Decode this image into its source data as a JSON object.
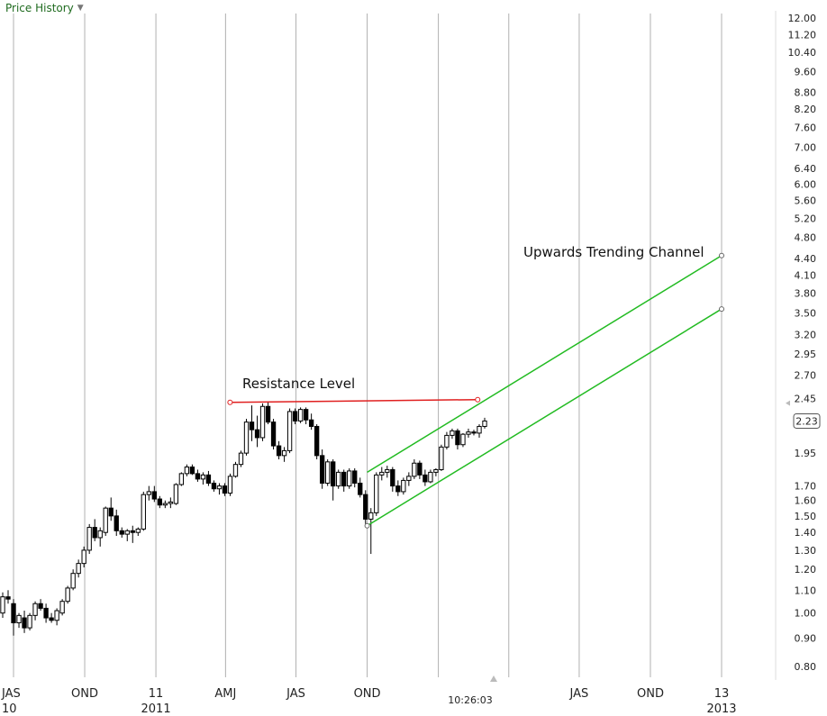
{
  "header": {
    "label": "Price History",
    "dropdown_icon": "chevron-down-icon"
  },
  "timestamp": "10:26:03",
  "current_price_label": "2.23",
  "colors": {
    "grid": "#b0b0b0",
    "candle": "#000000",
    "resistance": "#e02020",
    "channel": "#22bb22",
    "marker_arrow": "#bbbbbb"
  },
  "annotations": {
    "resistance_label": "Resistance Level",
    "channel_label": "Upwards Trending Channel"
  },
  "chart_data": {
    "type": "candlestick",
    "y_scale": "log",
    "ylim": [
      0.76,
      12.5
    ],
    "grid": "vertical",
    "x_range": [
      "2010-07-01",
      "2013-07-01"
    ],
    "y_ticks": [
      "12.00",
      "11.20",
      "10.40",
      "9.60",
      "8.80",
      "8.20",
      "7.60",
      "7.00",
      "6.40",
      "6.00",
      "5.60",
      "5.20",
      "4.80",
      "4.40",
      "4.10",
      "3.80",
      "3.50",
      "3.20",
      "2.95",
      "2.70",
      "2.45",
      "1.95",
      "1.70",
      "1.60",
      "1.50",
      "1.40",
      "1.30",
      "1.20",
      "1.10",
      "1.00",
      "0.90",
      "0.80"
    ],
    "x_ticks": [
      {
        "date": "2010-07-01",
        "label": "JAS",
        "year": "10"
      },
      {
        "date": "2010-10-01",
        "label": "OND",
        "year": ""
      },
      {
        "date": "2011-01-01",
        "label": "11",
        "year": "2011"
      },
      {
        "date": "2011-04-01",
        "label": "AMJ",
        "year": ""
      },
      {
        "date": "2011-07-01",
        "label": "JAS",
        "year": ""
      },
      {
        "date": "2011-10-01",
        "label": "OND",
        "year": ""
      },
      {
        "date": "2012-07-01",
        "label": "JAS",
        "year": ""
      },
      {
        "date": "2012-10-01",
        "label": "OND",
        "year": ""
      },
      {
        "date": "2013-01-01",
        "label": "13",
        "year": "2013"
      }
    ],
    "gridlines": [
      "2010-07-01",
      "2010-10-01",
      "2011-01-01",
      "2011-04-01",
      "2011-07-01",
      "2011-10-01",
      "2012-01-01",
      "2012-04-01",
      "2012-07-01",
      "2012-10-01",
      "2013-01-01"
    ],
    "candles": [
      [
        1.0,
        1.09,
        0.98,
        1.07
      ],
      [
        1.07,
        1.1,
        1.04,
        1.06
      ],
      [
        1.04,
        1.06,
        0.91,
        0.96
      ],
      [
        0.96,
        1.0,
        0.94,
        0.99
      ],
      [
        0.98,
        1.01,
        0.92,
        0.94
      ],
      [
        0.94,
        1.0,
        0.93,
        0.99
      ],
      [
        0.99,
        1.05,
        0.97,
        1.04
      ],
      [
        1.04,
        1.06,
        1.01,
        1.02
      ],
      [
        1.02,
        1.04,
        0.96,
        0.98
      ],
      [
        0.98,
        1.0,
        0.96,
        0.97
      ],
      [
        0.97,
        1.02,
        0.95,
        1.01
      ],
      [
        1.0,
        1.06,
        0.99,
        1.05
      ],
      [
        1.05,
        1.12,
        1.04,
        1.11
      ],
      [
        1.11,
        1.2,
        1.1,
        1.18
      ],
      [
        1.18,
        1.25,
        1.16,
        1.23
      ],
      [
        1.23,
        1.32,
        1.21,
        1.3
      ],
      [
        1.3,
        1.45,
        1.28,
        1.43
      ],
      [
        1.43,
        1.48,
        1.35,
        1.37
      ],
      [
        1.37,
        1.43,
        1.32,
        1.41
      ],
      [
        1.4,
        1.56,
        1.38,
        1.55
      ],
      [
        1.55,
        1.62,
        1.47,
        1.5
      ],
      [
        1.5,
        1.54,
        1.38,
        1.41
      ],
      [
        1.41,
        1.43,
        1.37,
        1.39
      ],
      [
        1.39,
        1.42,
        1.35,
        1.41
      ],
      [
        1.41,
        1.44,
        1.34,
        1.4
      ],
      [
        1.4,
        1.43,
        1.38,
        1.42
      ],
      [
        1.42,
        1.66,
        1.41,
        1.64
      ],
      [
        1.64,
        1.7,
        1.6,
        1.66
      ],
      [
        1.66,
        1.7,
        1.59,
        1.61
      ],
      [
        1.61,
        1.63,
        1.55,
        1.57
      ],
      [
        1.57,
        1.6,
        1.55,
        1.58
      ],
      [
        1.58,
        1.62,
        1.55,
        1.59
      ],
      [
        1.58,
        1.72,
        1.57,
        1.71
      ],
      [
        1.71,
        1.8,
        1.7,
        1.79
      ],
      [
        1.79,
        1.86,
        1.77,
        1.84
      ],
      [
        1.84,
        1.86,
        1.78,
        1.79
      ],
      [
        1.79,
        1.82,
        1.73,
        1.75
      ],
      [
        1.75,
        1.8,
        1.71,
        1.78
      ],
      [
        1.78,
        1.81,
        1.7,
        1.72
      ],
      [
        1.72,
        1.74,
        1.66,
        1.68
      ],
      [
        1.68,
        1.72,
        1.64,
        1.7
      ],
      [
        1.7,
        1.72,
        1.63,
        1.65
      ],
      [
        1.65,
        1.79,
        1.63,
        1.77
      ],
      [
        1.77,
        1.88,
        1.76,
        1.86
      ],
      [
        1.86,
        1.97,
        1.84,
        1.95
      ],
      [
        1.95,
        2.25,
        1.93,
        2.22
      ],
      [
        2.22,
        2.38,
        2.05,
        2.15
      ],
      [
        2.15,
        2.28,
        2.0,
        2.08
      ],
      [
        2.08,
        2.4,
        2.05,
        2.37
      ],
      [
        2.37,
        2.42,
        2.2,
        2.22
      ],
      [
        2.22,
        2.25,
        1.98,
        2.01
      ],
      [
        2.01,
        2.05,
        1.9,
        1.93
      ],
      [
        1.93,
        2.0,
        1.88,
        1.97
      ],
      [
        1.97,
        2.35,
        1.95,
        2.32
      ],
      [
        2.32,
        2.35,
        2.2,
        2.23
      ],
      [
        2.23,
        2.36,
        2.21,
        2.34
      ],
      [
        2.34,
        2.36,
        2.2,
        2.24
      ],
      [
        2.24,
        2.3,
        2.15,
        2.18
      ],
      [
        2.18,
        2.2,
        1.9,
        1.93
      ],
      [
        1.93,
        1.98,
        1.68,
        1.72
      ],
      [
        1.72,
        1.9,
        1.7,
        1.88
      ],
      [
        1.88,
        1.9,
        1.6,
        1.7
      ],
      [
        1.7,
        1.82,
        1.68,
        1.8
      ],
      [
        1.8,
        1.82,
        1.66,
        1.7
      ],
      [
        1.7,
        1.83,
        1.68,
        1.81
      ],
      [
        1.81,
        1.83,
        1.69,
        1.72
      ],
      [
        1.72,
        1.76,
        1.62,
        1.64
      ],
      [
        1.64,
        1.67,
        1.45,
        1.48
      ],
      [
        1.48,
        1.55,
        1.28,
        1.52
      ],
      [
        1.52,
        1.8,
        1.5,
        1.78
      ],
      [
        1.78,
        1.84,
        1.74,
        1.8
      ],
      [
        1.8,
        1.85,
        1.76,
        1.82
      ],
      [
        1.82,
        1.84,
        1.66,
        1.7
      ],
      [
        1.7,
        1.74,
        1.63,
        1.66
      ],
      [
        1.66,
        1.76,
        1.64,
        1.74
      ],
      [
        1.74,
        1.8,
        1.7,
        1.77
      ],
      [
        1.77,
        1.9,
        1.75,
        1.87
      ],
      [
        1.87,
        1.89,
        1.75,
        1.78
      ],
      [
        1.78,
        1.82,
        1.7,
        1.73
      ],
      [
        1.73,
        1.82,
        1.72,
        1.8
      ],
      [
        1.8,
        1.83,
        1.77,
        1.82
      ],
      [
        1.82,
        2.02,
        1.81,
        2.0
      ],
      [
        2.0,
        2.13,
        1.98,
        2.1
      ],
      [
        2.1,
        2.16,
        2.07,
        2.14
      ],
      [
        2.14,
        2.16,
        1.98,
        2.02
      ],
      [
        2.02,
        2.12,
        2.0,
        2.11
      ],
      [
        2.11,
        2.16,
        2.08,
        2.13
      ],
      [
        2.13,
        2.15,
        2.1,
        2.12
      ],
      [
        2.12,
        2.2,
        2.08,
        2.18
      ],
      [
        2.18,
        2.26,
        2.16,
        2.23
      ]
    ],
    "resistance_line": {
      "x0": "2011-04-01",
      "x1": "2012-02-15",
      "price": 2.42
    },
    "channel": {
      "upper": {
        "x0": "2011-10-01",
        "y0": 1.8,
        "x1": "2013-01-01",
        "y1": 4.45
      },
      "lower": {
        "x0": "2011-10-01",
        "y0": 1.44,
        "x1": "2013-01-01",
        "y1": 3.56
      }
    }
  }
}
